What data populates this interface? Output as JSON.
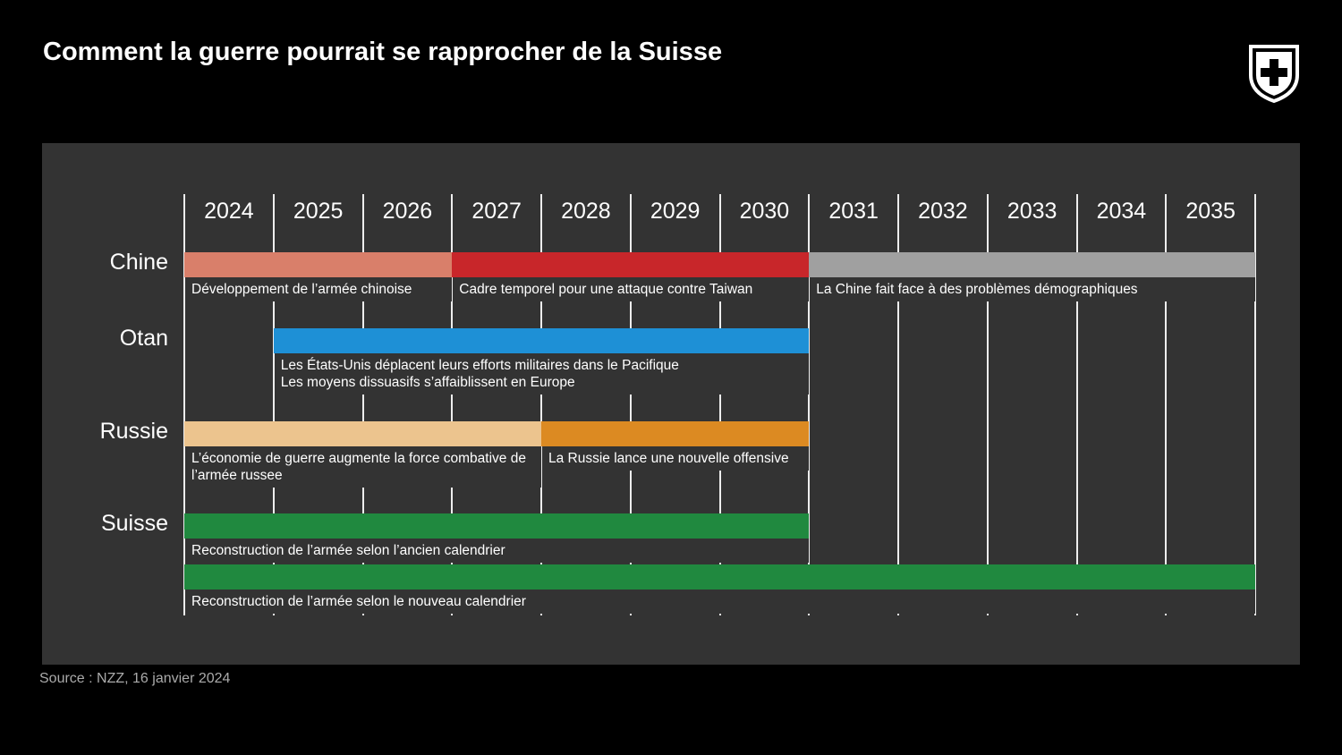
{
  "chart_data": {
    "type": "timeline",
    "title": "Comment la guerre pourrait se rapprocher de la Suisse",
    "source": "Source : NZZ, 16 janvier 2024",
    "xlim": [
      2024,
      2036
    ],
    "xticks": [
      2024,
      2025,
      2026,
      2027,
      2028,
      2029,
      2030,
      2031,
      2032,
      2033,
      2034,
      2035
    ],
    "rows": [
      {
        "name": "Chine",
        "lanes": [
          [
            {
              "start": 2024,
              "end": 2027,
              "color": "#d97f6a",
              "label": [
                "Développement de l’armée chinoise"
              ]
            },
            {
              "start": 2027,
              "end": 2031,
              "color": "#c8262a",
              "label": [
                "Cadre temporel pour une attaque contre Taiwan"
              ]
            },
            {
              "start": 2031,
              "end": 2036,
              "color": "#a0a0a0",
              "label": [
                "La Chine fait face à des problèmes démographiques"
              ]
            }
          ]
        ]
      },
      {
        "name": "Otan",
        "lanes": [
          [
            {
              "start": 2025,
              "end": 2031,
              "color": "#1e90d6",
              "label": [
                "Les États-Unis déplacent leurs efforts militaires dans le Pacifique",
                "Les moyens dissuasifs s’affaiblissent en Europe"
              ]
            }
          ]
        ]
      },
      {
        "name": "Russie",
        "lanes": [
          [
            {
              "start": 2024,
              "end": 2028,
              "color": "#ecc48e",
              "label": [
                "L’économie de guerre augmente la force combative de l’armée russee"
              ]
            },
            {
              "start": 2028,
              "end": 2031,
              "color": "#dc8a22",
              "label": [
                "La Russie lance une nouvelle offensive"
              ]
            }
          ]
        ]
      },
      {
        "name": "Suisse",
        "lanes": [
          [
            {
              "start": 2024,
              "end": 2031,
              "color": "#20893f",
              "label": [
                "Reconstruction de l’armée selon l’ancien calendrier"
              ]
            }
          ],
          [
            {
              "start": 2024,
              "end": 2036,
              "color": "#20893f",
              "label": [
                "Reconstruction de l’armée selon le nouveau calendrier"
              ]
            }
          ]
        ]
      }
    ]
  }
}
